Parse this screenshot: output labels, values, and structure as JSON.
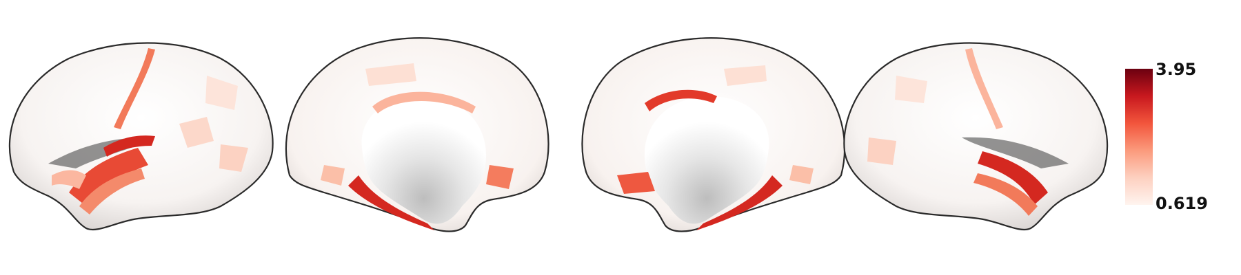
{
  "figure": {
    "views": [
      {
        "name": "left-lateral"
      },
      {
        "name": "left-medial"
      },
      {
        "name": "right-medial"
      },
      {
        "name": "right-lateral"
      }
    ]
  },
  "colorbar": {
    "max_label": "3.95",
    "min_label": "0.619",
    "colormap": [
      "#fff4ef",
      "#fdd0c0",
      "#fb9a7c",
      "#f2553c",
      "#c8181e",
      "#6b0010"
    ]
  }
}
